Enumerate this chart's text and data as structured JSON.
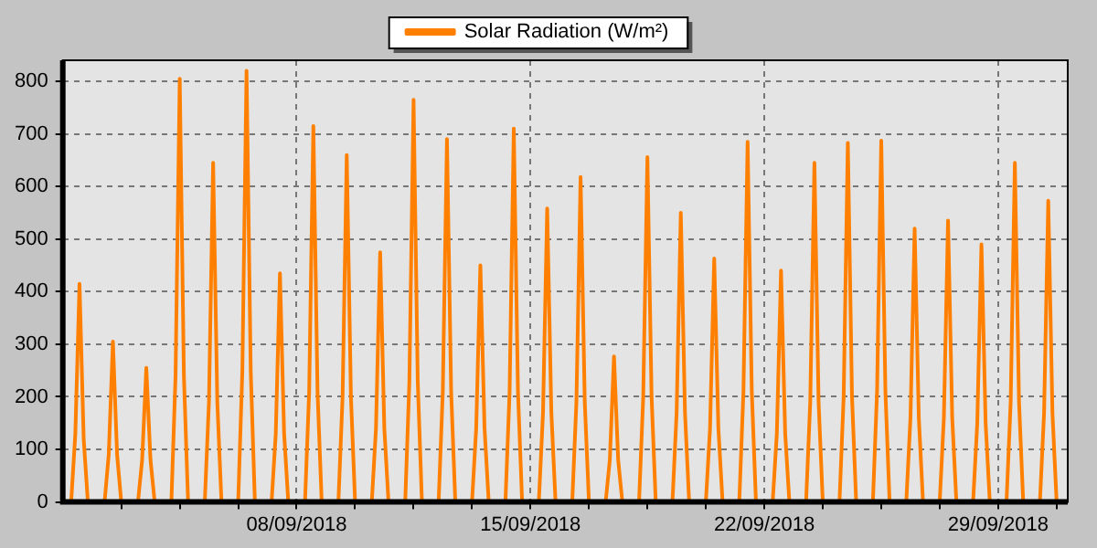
{
  "chart_data": {
    "type": "line",
    "legend": "top",
    "grid": true,
    "xlim": [
      "2018-09-01T00:00",
      "2018-10-01T02:00"
    ],
    "xticks": [
      {
        "value": "2018-09-02T18:00",
        "label": null
      },
      {
        "value": "2018-09-04T12:00",
        "label": null
      },
      {
        "value": "2018-09-06T06:00",
        "label": null
      },
      {
        "value": "2018-09-08T00:00",
        "label": "08/09/2018"
      },
      {
        "value": "2018-09-09T18:00",
        "label": null
      },
      {
        "value": "2018-09-11T12:00",
        "label": null
      },
      {
        "value": "2018-09-13T06:00",
        "label": null
      },
      {
        "value": "2018-09-15T00:00",
        "label": "15/09/2018"
      },
      {
        "value": "2018-09-16T18:00",
        "label": null
      },
      {
        "value": "2018-09-18T12:00",
        "label": null
      },
      {
        "value": "2018-09-20T06:00",
        "label": null
      },
      {
        "value": "2018-09-22T00:00",
        "label": "22/09/2018"
      },
      {
        "value": "2018-09-23T18:00",
        "label": null
      },
      {
        "value": "2018-09-25T12:00",
        "label": null
      },
      {
        "value": "2018-09-27T06:00",
        "label": null
      },
      {
        "value": "2018-09-29T00:00",
        "label": "29/09/2018"
      },
      {
        "value": "2018-09-30T18:00",
        "label": null
      }
    ],
    "ylim": [
      0,
      840
    ],
    "yticks": [
      0,
      100,
      200,
      300,
      400,
      500,
      600,
      700,
      800
    ],
    "series": [
      {
        "name": "Solar Radiation (W/m²)",
        "color": "#ff8000",
        "x": [
          "2018-09-01T06:00",
          "2018-09-01T09:00",
          "2018-09-01T12:00",
          "2018-09-01T15:00",
          "2018-09-01T18:00",
          "2018-09-02T06:00",
          "2018-09-02T09:00",
          "2018-09-02T12:00",
          "2018-09-02T15:00",
          "2018-09-02T18:00",
          "2018-09-03T06:00",
          "2018-09-03T09:00",
          "2018-09-03T12:00",
          "2018-09-03T15:00",
          "2018-09-03T18:00",
          "2018-09-04T06:00",
          "2018-09-04T09:00",
          "2018-09-04T12:00",
          "2018-09-04T15:00",
          "2018-09-04T18:00",
          "2018-09-05T06:00",
          "2018-09-05T09:00",
          "2018-09-05T12:00",
          "2018-09-05T15:00",
          "2018-09-05T18:00",
          "2018-09-06T06:00",
          "2018-09-06T09:00",
          "2018-09-06T12:00",
          "2018-09-06T15:00",
          "2018-09-06T18:00",
          "2018-09-07T06:00",
          "2018-09-07T09:00",
          "2018-09-07T12:00",
          "2018-09-07T15:00",
          "2018-09-07T18:00",
          "2018-09-08T06:00",
          "2018-09-08T09:00",
          "2018-09-08T12:00",
          "2018-09-08T15:00",
          "2018-09-08T18:00",
          "2018-09-09T06:00",
          "2018-09-09T09:00",
          "2018-09-09T12:00",
          "2018-09-09T15:00",
          "2018-09-09T18:00",
          "2018-09-10T06:00",
          "2018-09-10T09:00",
          "2018-09-10T12:00",
          "2018-09-10T15:00",
          "2018-09-10T18:00",
          "2018-09-11T06:00",
          "2018-09-11T09:00",
          "2018-09-11T12:00",
          "2018-09-11T15:00",
          "2018-09-11T18:00",
          "2018-09-12T06:00",
          "2018-09-12T09:00",
          "2018-09-12T12:00",
          "2018-09-12T15:00",
          "2018-09-12T18:00",
          "2018-09-13T06:00",
          "2018-09-13T09:00",
          "2018-09-13T12:00",
          "2018-09-13T15:00",
          "2018-09-13T18:00",
          "2018-09-14T06:00",
          "2018-09-14T09:00",
          "2018-09-14T12:00",
          "2018-09-14T15:00",
          "2018-09-14T18:00",
          "2018-09-15T06:00",
          "2018-09-15T09:00",
          "2018-09-15T12:00",
          "2018-09-15T15:00",
          "2018-09-15T18:00",
          "2018-09-16T06:00",
          "2018-09-16T09:00",
          "2018-09-16T12:00",
          "2018-09-16T15:00",
          "2018-09-16T18:00",
          "2018-09-17T06:00",
          "2018-09-17T09:00",
          "2018-09-17T12:00",
          "2018-09-17T15:00",
          "2018-09-17T18:00",
          "2018-09-18T06:00",
          "2018-09-18T09:00",
          "2018-09-18T12:00",
          "2018-09-18T15:00",
          "2018-09-18T18:00",
          "2018-09-19T06:00",
          "2018-09-19T09:00",
          "2018-09-19T12:00",
          "2018-09-19T15:00",
          "2018-09-19T18:00",
          "2018-09-20T06:00",
          "2018-09-20T09:00",
          "2018-09-20T12:00",
          "2018-09-20T15:00",
          "2018-09-20T18:00",
          "2018-09-21T06:00",
          "2018-09-21T09:00",
          "2018-09-21T12:00",
          "2018-09-21T15:00",
          "2018-09-21T18:00",
          "2018-09-22T06:00",
          "2018-09-22T09:00",
          "2018-09-22T12:00",
          "2018-09-22T15:00",
          "2018-09-22T18:00",
          "2018-09-23T06:00",
          "2018-09-23T09:00",
          "2018-09-23T12:00",
          "2018-09-23T15:00",
          "2018-09-23T18:00",
          "2018-09-24T06:00",
          "2018-09-24T09:00",
          "2018-09-24T12:00",
          "2018-09-24T15:00",
          "2018-09-24T18:00",
          "2018-09-25T06:00",
          "2018-09-25T09:00",
          "2018-09-25T12:00",
          "2018-09-25T15:00",
          "2018-09-25T18:00",
          "2018-09-26T06:00",
          "2018-09-26T09:00",
          "2018-09-26T12:00",
          "2018-09-26T15:00",
          "2018-09-26T18:00",
          "2018-09-27T06:00",
          "2018-09-27T09:00",
          "2018-09-27T12:00",
          "2018-09-27T15:00",
          "2018-09-27T18:00",
          "2018-09-28T06:00",
          "2018-09-28T09:00",
          "2018-09-28T12:00",
          "2018-09-28T15:00",
          "2018-09-28T18:00",
          "2018-09-29T06:00",
          "2018-09-29T09:00",
          "2018-09-29T12:00",
          "2018-09-29T15:00",
          "2018-09-29T18:00",
          "2018-09-30T06:00",
          "2018-09-30T09:00",
          "2018-09-30T12:00",
          "2018-09-30T15:00",
          "2018-09-30T18:00"
        ],
        "values": [
          0,
          130,
          415,
          120,
          0,
          0,
          90,
          305,
          90,
          0,
          0,
          80,
          255,
          80,
          0,
          0,
          240,
          805,
          240,
          0,
          0,
          190,
          645,
          190,
          0,
          0,
          250,
          820,
          250,
          0,
          0,
          130,
          435,
          130,
          0,
          0,
          210,
          715,
          210,
          0,
          0,
          200,
          660,
          200,
          0,
          0,
          140,
          475,
          140,
          0,
          0,
          230,
          765,
          230,
          0,
          0,
          210,
          690,
          210,
          0,
          0,
          140,
          450,
          140,
          0,
          0,
          210,
          710,
          210,
          0,
          0,
          170,
          558,
          170,
          0,
          0,
          190,
          618,
          190,
          0,
          0,
          80,
          277,
          80,
          0,
          0,
          200,
          656,
          200,
          0,
          0,
          170,
          550,
          170,
          0,
          0,
          140,
          463,
          140,
          0,
          0,
          210,
          685,
          210,
          0,
          0,
          130,
          440,
          130,
          0,
          0,
          190,
          645,
          190,
          0,
          0,
          200,
          683,
          200,
          0,
          0,
          210,
          687,
          210,
          0,
          0,
          160,
          520,
          160,
          0,
          0,
          160,
          535,
          160,
          0,
          0,
          150,
          490,
          150,
          0,
          0,
          190,
          645,
          190,
          0,
          0,
          170,
          573,
          170,
          0
        ]
      }
    ]
  }
}
